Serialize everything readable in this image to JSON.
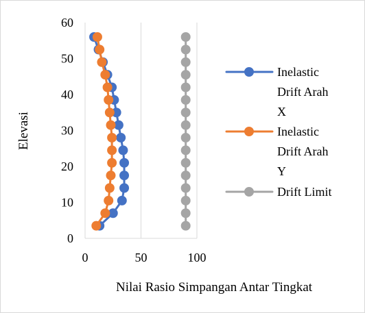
{
  "chart_data": {
    "type": "scatter",
    "title": "",
    "xlabel": "Nilai Rasio Simpangan Antar Tingkat",
    "ylabel": "Elevasi",
    "xlim": [
      0,
      100
    ],
    "ylim": [
      0,
      60
    ],
    "x_ticks": [
      0,
      50,
      100
    ],
    "y_ticks": [
      0,
      10,
      20,
      30,
      40,
      50,
      60
    ],
    "grid": {
      "vertical": true,
      "horizontal": false
    },
    "markers": true,
    "lines": true,
    "legend_position": "right",
    "series": [
      {
        "name": "Inelastic Drift Arah X",
        "legend_lines": [
          "Inelastic",
          "Drift Arah",
          "X"
        ],
        "color": "#4472C4",
        "points": [
          [
            13,
            3.5
          ],
          [
            25,
            7.0
          ],
          [
            33,
            10.5
          ],
          [
            35,
            14.0
          ],
          [
            35,
            17.5
          ],
          [
            35,
            21.0
          ],
          [
            34,
            24.5
          ],
          [
            32,
            28.0
          ],
          [
            30,
            31.5
          ],
          [
            28,
            35.0
          ],
          [
            26,
            38.5
          ],
          [
            24,
            42.0
          ],
          [
            20,
            45.5
          ],
          [
            16,
            49.0
          ],
          [
            12,
            52.5
          ],
          [
            8,
            56.0
          ]
        ]
      },
      {
        "name": "Inelastic Drift Arah Y",
        "legend_lines": [
          "Inelastic",
          "Drift Arah",
          "Y"
        ],
        "color": "#ED7D31",
        "points": [
          [
            10,
            3.5
          ],
          [
            18,
            7.0
          ],
          [
            21,
            10.5
          ],
          [
            22,
            14.0
          ],
          [
            23,
            17.5
          ],
          [
            24,
            21.0
          ],
          [
            24,
            24.5
          ],
          [
            24,
            28.0
          ],
          [
            23,
            31.5
          ],
          [
            22,
            35.0
          ],
          [
            21,
            38.5
          ],
          [
            20,
            42.0
          ],
          [
            18,
            45.5
          ],
          [
            15,
            49.0
          ],
          [
            13,
            52.5
          ],
          [
            11,
            56.0
          ]
        ]
      },
      {
        "name": "Drift Limit",
        "legend_lines": [
          "Drift Limit"
        ],
        "color": "#A5A5A5",
        "points": [
          [
            90,
            3.5
          ],
          [
            90,
            7.0
          ],
          [
            90,
            10.5
          ],
          [
            90,
            14.0
          ],
          [
            90,
            17.5
          ],
          [
            90,
            21.0
          ],
          [
            90,
            24.5
          ],
          [
            90,
            28.0
          ],
          [
            90,
            31.5
          ],
          [
            90,
            35.0
          ],
          [
            90,
            38.5
          ],
          [
            90,
            42.0
          ],
          [
            90,
            45.5
          ],
          [
            90,
            49.0
          ],
          [
            90,
            52.5
          ],
          [
            90,
            56.0
          ]
        ]
      }
    ]
  }
}
